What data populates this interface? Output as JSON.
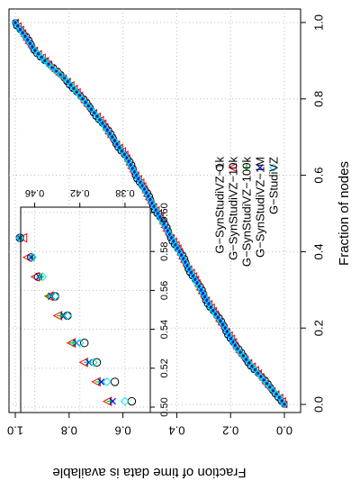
{
  "chart_data": [
    {
      "type": "scatter",
      "title": "",
      "xlabel": "Fraction of nodes",
      "ylabel": "Fraction of time data is available",
      "xlim": [
        0,
        1
      ],
      "ylim": [
        0,
        1
      ],
      "x_ticks": [
        "0.0",
        "0.2",
        "0.4",
        "0.6",
        "0.8",
        "1.0"
      ],
      "y_ticks": [
        "0.0",
        "0.2",
        "0.4",
        "0.6",
        "0.8",
        "1.0"
      ],
      "grid": true,
      "legend_position": "right",
      "series": [
        {
          "name": "G−SynStudiVZ−1k",
          "color": "#000000",
          "marker": "circle"
        },
        {
          "name": "G−SynStudiVZ−10k",
          "color": "#ff0000",
          "marker": "triangle"
        },
        {
          "name": "G−SynStudiVZ−100k",
          "color": "#00cc00",
          "marker": "plus"
        },
        {
          "name": "G−SynStudiVZ−1M",
          "color": "#0000ff",
          "marker": "x"
        },
        {
          "name": "G−StudiVZ",
          "color": "#00e5ee",
          "marker": "diamond"
        }
      ],
      "curve": {
        "x": [
          0.0,
          0.02,
          0.05,
          0.1,
          0.15,
          0.2,
          0.25,
          0.3,
          0.35,
          0.4,
          0.45,
          0.5,
          0.55,
          0.6,
          0.65,
          0.7,
          0.75,
          0.8,
          0.85,
          0.88,
          0.9,
          0.93,
          0.96,
          0.98,
          1.0
        ],
        "y": [
          0.0,
          0.02,
          0.06,
          0.12,
          0.18,
          0.22,
          0.27,
          0.31,
          0.35,
          0.39,
          0.43,
          0.47,
          0.51,
          0.55,
          0.59,
          0.64,
          0.69,
          0.75,
          0.81,
          0.86,
          0.89,
          0.93,
          0.96,
          0.98,
          1.0
        ]
      }
    },
    {
      "type": "scatter",
      "title": "",
      "xlim": [
        0.5,
        0.6
      ],
      "ylim": [
        0.36,
        0.47
      ],
      "x_ticks": [
        "0.50",
        "0.52",
        "0.54",
        "0.56",
        "0.58",
        "0.60"
      ],
      "y_ticks": [
        "0.38",
        "0.42",
        "0.46"
      ],
      "grid": true,
      "points": [
        {
          "series": 0,
          "x": [
            0.503,
            0.513,
            0.523,
            0.533,
            0.547,
            0.557,
            0.567,
            0.577,
            0.587
          ],
          "y": [
            0.374,
            0.389,
            0.405,
            0.416,
            0.431,
            0.442,
            0.457,
            0.463,
            0.473
          ]
        },
        {
          "series": 1,
          "x": [
            0.503,
            0.513,
            0.523,
            0.533,
            0.547,
            0.557,
            0.567,
            0.577,
            0.587
          ],
          "y": [
            0.395,
            0.405,
            0.416,
            0.427,
            0.439,
            0.447,
            0.459,
            0.466,
            0.47
          ]
        },
        {
          "series": 2,
          "x": [
            0.503,
            0.513,
            0.523,
            0.533,
            0.547,
            0.557,
            0.567,
            0.577,
            0.587
          ],
          "y": [
            0.393,
            0.403,
            0.413,
            0.426,
            0.437,
            0.448,
            0.455,
            0.462,
            0.473
          ]
        },
        {
          "series": 3,
          "x": [
            0.503,
            0.513,
            0.523,
            0.533,
            0.547,
            0.557,
            0.567,
            0.577,
            0.587
          ],
          "y": [
            0.391,
            0.401,
            0.412,
            0.423,
            0.434,
            0.445,
            0.456,
            0.463,
            0.473
          ]
        },
        {
          "series": 4,
          "x": [
            0.503,
            0.513,
            0.523,
            0.533,
            0.547,
            0.557,
            0.567,
            0.577,
            0.587
          ],
          "y": [
            0.38,
            0.396,
            0.408,
            0.42,
            0.431,
            0.442,
            0.453,
            0.462,
            0.473
          ]
        }
      ]
    }
  ]
}
